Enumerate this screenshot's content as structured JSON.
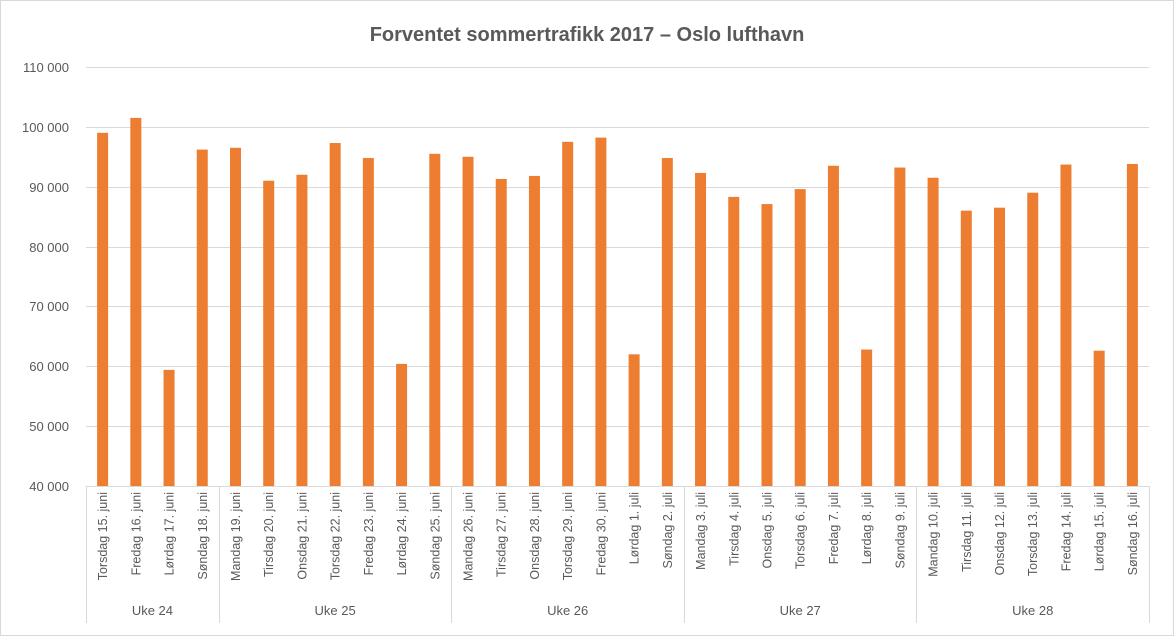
{
  "chart_data": {
    "type": "bar",
    "title": "Forventet sommertrafikk 2017 – Oslo lufthavn",
    "xlabel": "",
    "ylabel": "",
    "ylim": [
      40000,
      110000
    ],
    "yticks": [
      40000,
      50000,
      60000,
      70000,
      80000,
      90000,
      100000,
      110000
    ],
    "ytick_labels": [
      "40 000",
      "50 000",
      "60 000",
      "70 000",
      "80 000",
      "90 000",
      "100 000",
      "110 000"
    ],
    "grid": true,
    "bar_color": "#ED7D31",
    "categories": [
      "Torsdag 15. juni",
      "Fredag 16. juni",
      "Lørdag 17. juni",
      "Søndag 18. juni",
      "Mandag 19. juni",
      "Tirsdag 20. juni",
      "Onsdag 21. juni",
      "Torsdag 22. juni",
      "Fredag 23. juni",
      "Lørdag 24. juni",
      "Søndag 25. juni",
      "Mandag 26. juni",
      "Tirsdag 27. juni",
      "Onsdag 28. juni",
      "Torsdag 29. juni",
      "Fredag 30. juni",
      "Lørdag 1. juli",
      "Søndag 2. juli",
      "Mandag 3. juli",
      "Tirsdag 4. juli",
      "Onsdag 5. juli",
      "Torsdag 6. juli",
      "Fredag 7. juli",
      "Lørdag 8. juli",
      "Søndag 9. juli",
      "Mandag 10. juli",
      "Tirsdag 11. juli",
      "Onsdag 12. juli",
      "Torsdag 13. juli",
      "Fredag 14. juli",
      "Lørdag 15. juli",
      "Søndag 16. juli"
    ],
    "values": [
      99000,
      101500,
      59400,
      96200,
      96500,
      91000,
      92000,
      97300,
      94800,
      60400,
      95500,
      95000,
      91300,
      91800,
      97500,
      98200,
      62000,
      94800,
      92300,
      88300,
      87100,
      89600,
      93500,
      62800,
      93200,
      91500,
      86000,
      86500,
      89000,
      93700,
      62600,
      93800
    ],
    "groups": [
      {
        "label": "Uke 24",
        "count": 4
      },
      {
        "label": "Uke 25",
        "count": 7
      },
      {
        "label": "Uke 26",
        "count": 7
      },
      {
        "label": "Uke 27",
        "count": 7
      },
      {
        "label": "Uke 28",
        "count": 7
      }
    ]
  }
}
